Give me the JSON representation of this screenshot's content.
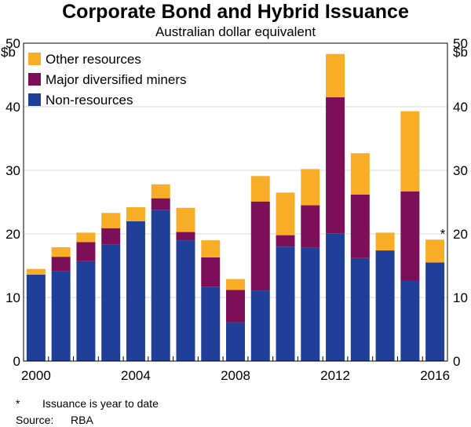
{
  "chart_data": {
    "type": "bar",
    "stacked": true,
    "title": "Corporate Bond and Hybrid Issuance",
    "subtitle": "Australian dollar equivalent",
    "ylabel_left": "$b",
    "ylabel_right": "$b",
    "ylim": [
      0,
      50
    ],
    "yticks": [
      0,
      10,
      20,
      30,
      40,
      50
    ],
    "categories": [
      "2000",
      "2001",
      "2002",
      "2003",
      "2004",
      "2005",
      "2006",
      "2007",
      "2008",
      "2009",
      "2010",
      "2011",
      "2012",
      "2013",
      "2014",
      "2015",
      "2016"
    ],
    "xtick_labels": [
      "2000",
      "2004",
      "2008",
      "2012",
      "2016"
    ],
    "series": [
      {
        "name": "Non-resources",
        "color": "#1f3f99",
        "values": [
          13.6,
          14.1,
          15.7,
          18.3,
          22.0,
          23.8,
          19.0,
          11.7,
          6.1,
          11.1,
          18.0,
          17.8,
          20.1,
          16.2,
          17.4,
          12.6,
          15.5
        ]
      },
      {
        "name": "Major diversified miners",
        "color": "#7d0e58",
        "values": [
          0.0,
          2.3,
          3.0,
          2.6,
          0.0,
          1.8,
          1.3,
          4.6,
          5.1,
          14.0,
          1.8,
          6.7,
          21.4,
          10.0,
          0.0,
          14.1,
          0.0
        ]
      },
      {
        "name": "Other resources",
        "color": "#f8ad27",
        "values": [
          0.9,
          1.5,
          1.5,
          2.4,
          2.2,
          2.2,
          3.8,
          2.7,
          1.7,
          4.0,
          6.7,
          5.7,
          6.8,
          6.5,
          2.8,
          12.6,
          3.6
        ]
      }
    ],
    "legend_order": [
      "Other resources",
      "Major diversified miners",
      "Non-resources"
    ],
    "legend_position": "top-left",
    "annotations": [
      {
        "category": "2016",
        "text": "*"
      }
    ]
  },
  "footnote": {
    "mark": "*",
    "text": "Issuance is year to date"
  },
  "source": {
    "label": "Source:",
    "text": "RBA"
  }
}
